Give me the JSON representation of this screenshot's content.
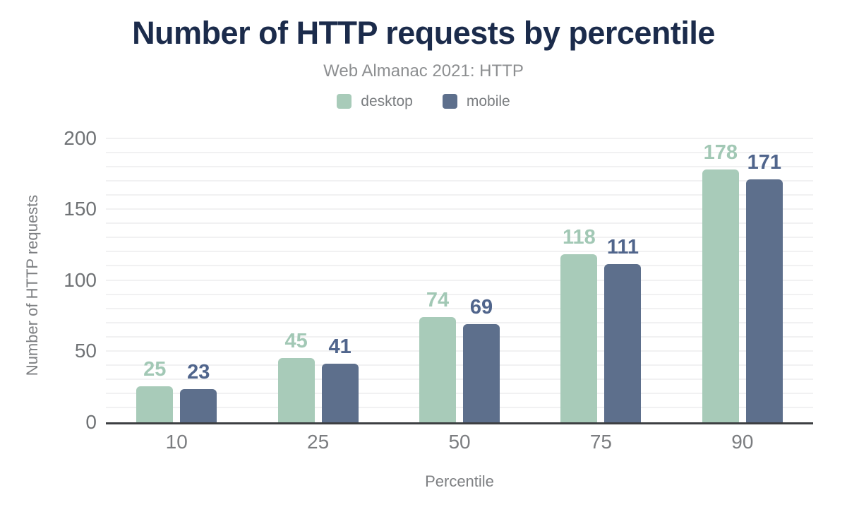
{
  "chart_data": {
    "type": "bar",
    "title": "Number of HTTP requests by percentile",
    "subtitle": "Web Almanac 2021: HTTP",
    "categories": [
      "10",
      "25",
      "50",
      "75",
      "90"
    ],
    "series": [
      {
        "name": "desktop",
        "color": "#a8cbb9",
        "label_color": "#a2c8b5",
        "values": [
          25,
          45,
          74,
          118,
          178
        ]
      },
      {
        "name": "mobile",
        "color": "#5d6f8c",
        "label_color": "#50658c",
        "values": [
          23,
          41,
          69,
          111,
          171
        ]
      }
    ],
    "xlabel": "Percentile",
    "ylabel": "Number of HTTP requests",
    "ylim": [
      0,
      200
    ],
    "yticks": [
      0,
      50,
      100,
      150,
      200
    ],
    "grid": {
      "minor_step": 10,
      "color": "#f1f1f2",
      "on": true
    },
    "legend_position": "top",
    "colors": {
      "title": "#1b2b4b",
      "subtitle": "#8d8f91",
      "axis_line": "#3d3f42",
      "tick_text": "#6f7275"
    }
  }
}
